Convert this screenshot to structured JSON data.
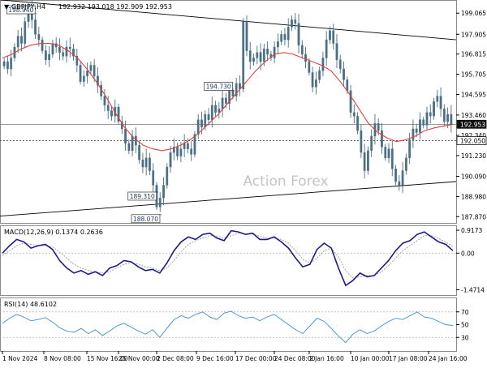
{
  "header": {
    "symbol": "GBPJPY,H4",
    "ohlc": "192.932 193.018 192.909 192.953"
  },
  "watermark": "Action Forex",
  "chart_data": [
    {
      "type": "candlestick",
      "panel": "price",
      "symbol": "GBPJPY",
      "timeframe": "H4",
      "ylim": [
        187.57,
        199.7
      ],
      "y_ticks": [
        199.065,
        197.905,
        196.815,
        195.705,
        194.595,
        193.46,
        192.34,
        191.23,
        190.09,
        188.98,
        187.87
      ],
      "x_ticks": [
        "1 Nov 2024",
        "8 Nov 08:00",
        "15 Nov 16:00",
        "25 Nov 00:00",
        "2 Dec 08:00",
        "9 Dec 16:00",
        "17 Dec 00:00",
        "24 Dec 08:00",
        "2 Jan 16:00",
        "10 Jan 00:00",
        "17 Jan 08:00",
        "24 Jan 16:00"
      ],
      "series": [
        {
          "style": "candles",
          "values": [
            196.4,
            196.0,
            196.6,
            197.2,
            197.8,
            197.4,
            198.6,
            199.3,
            198.7,
            197.9,
            197.6,
            197.0,
            196.5,
            196.8,
            197.4,
            197.2,
            196.9,
            196.7,
            197.2,
            197.1,
            196.7,
            196.2,
            195.3,
            195.6,
            195.9,
            196.2,
            195.6,
            195.1,
            194.5,
            194.0,
            193.7,
            193.4,
            193.9,
            193.1,
            192.7,
            191.9,
            191.5,
            192.3,
            191.8,
            191.0,
            190.6,
            191.1,
            190.4,
            189.6,
            188.4,
            188.9,
            189.6,
            190.6,
            191.4,
            191.7,
            191.2,
            191.6,
            191.9,
            191.6,
            191.3,
            192.4,
            193.2,
            192.8,
            193.5,
            193.2,
            194.0,
            193.6,
            193.8,
            194.4,
            194.1,
            194.8,
            194.5,
            195.2,
            194.9,
            198.6,
            197.0,
            196.4,
            196.6,
            196.9,
            196.4,
            197.1,
            196.8,
            196.6,
            197.2,
            197.5,
            197.9,
            197.6,
            198.3,
            198.7,
            198.5,
            197.3,
            196.8,
            196.4,
            195.8,
            195.0,
            195.4,
            195.9,
            196.6,
            197.6,
            198.1,
            197.4,
            196.5,
            196.0,
            195.4,
            194.8,
            193.6,
            193.4,
            192.6,
            191.4,
            190.4,
            191.5,
            192.3,
            193.0,
            192.6,
            191.7,
            191.1,
            191.6,
            190.5,
            189.8,
            189.6,
            190.4,
            191.1,
            192.1,
            192.7,
            192.5,
            193.2,
            192.9,
            193.6,
            193.4,
            194.2,
            194.5,
            193.8,
            193.1,
            193.5,
            192.953
          ]
        },
        {
          "name": "",
          "style": "moving-average",
          "values": [
            196.6,
            196.8,
            197.1,
            197.3,
            197.4,
            197.4,
            197.3,
            197.0,
            196.6,
            196.0,
            195.3,
            194.5,
            193.6,
            192.8,
            192.2,
            191.8,
            191.6,
            191.5,
            191.6,
            191.8,
            192.1,
            192.5,
            193.0,
            193.5,
            194.1,
            194.7,
            195.3,
            195.9,
            196.4,
            196.8,
            196.9,
            196.8,
            196.6,
            196.4,
            196.2,
            195.9,
            195.3,
            194.6,
            193.8,
            193.0,
            192.5,
            192.2,
            192.0,
            192.1,
            192.3,
            192.6,
            192.75,
            192.85,
            192.95
          ]
        },
        {
          "name": "",
          "style": "trendline",
          "values": [
            199.8,
            197.6
          ]
        },
        {
          "name": "",
          "style": "trendline",
          "values": [
            187.9,
            189.8
          ]
        },
        {
          "name": "",
          "style": "horizontal-level",
          "values": [
            192.95
          ]
        },
        {
          "name": "",
          "style": "horizontal-level",
          "values": [
            192.05
          ]
        }
      ],
      "annotations": [
        {
          "label": "198.940",
          "value": 198.94
        },
        {
          "label": "194.730",
          "value": 194.73
        },
        {
          "label": "189.310",
          "value": 189.31
        },
        {
          "label": "188.070",
          "value": 188.07
        }
      ],
      "price_badges": [
        {
          "label": "192.953",
          "value": 192.953,
          "style": "dark"
        },
        {
          "label": "192.050",
          "value": 192.05,
          "style": "outline"
        }
      ],
      "line_colors": {
        "candles": "#4a6f85",
        "moving-average": "#e0413a",
        "trendline": "#000000"
      }
    },
    {
      "type": "line",
      "panel": "macd",
      "title": "MACD(12,26,9) 0.1374 0.2636",
      "ylim": [
        -1.65,
        1.05
      ],
      "y_ticks": [
        "0.9173",
        "0.00",
        "-1.4714"
      ],
      "y_tick_values": [
        0.9173,
        0.0,
        -1.4714
      ],
      "series": [
        {
          "name": "",
          "values": [
            0.0,
            0.3,
            0.55,
            0.45,
            0.2,
            0.3,
            0.35,
            0.15,
            -0.3,
            -0.6,
            -0.8,
            -0.7,
            -0.85,
            -0.75,
            -0.9,
            -0.6,
            -0.5,
            -0.3,
            -0.35,
            -0.55,
            -0.7,
            -0.65,
            -0.8,
            -0.4,
            0.1,
            0.45,
            0.65,
            0.55,
            0.75,
            0.8,
            0.6,
            0.5,
            0.9,
            0.85,
            0.75,
            0.8,
            0.55,
            0.55,
            0.65,
            0.45,
            0.2,
            -0.2,
            -0.55,
            -0.45,
            0.15,
            0.4,
            0.2,
            -0.6,
            -1.3,
            -1.1,
            -0.8,
            -0.95,
            -0.9,
            -0.6,
            -0.3,
            0.1,
            0.4,
            0.5,
            0.75,
            0.85,
            0.65,
            0.45,
            0.35,
            0.1
          ]
        },
        {
          "name": "",
          "values": [
            -0.1,
            0.1,
            0.3,
            0.4,
            0.35,
            0.3,
            0.3,
            0.25,
            0.05,
            -0.2,
            -0.45,
            -0.6,
            -0.7,
            -0.75,
            -0.8,
            -0.75,
            -0.6,
            -0.45,
            -0.38,
            -0.45,
            -0.55,
            -0.6,
            -0.7,
            -0.6,
            -0.3,
            0.05,
            0.35,
            0.5,
            0.6,
            0.7,
            0.68,
            0.6,
            0.7,
            0.8,
            0.78,
            0.76,
            0.68,
            0.6,
            0.6,
            0.55,
            0.4,
            0.1,
            -0.25,
            -0.4,
            -0.2,
            0.1,
            0.2,
            -0.15,
            -0.7,
            -1.0,
            -0.95,
            -0.9,
            -0.9,
            -0.75,
            -0.5,
            -0.2,
            0.1,
            0.3,
            0.5,
            0.7,
            0.7,
            0.58,
            0.45,
            0.26
          ]
        }
      ]
    },
    {
      "type": "line",
      "panel": "rsi",
      "title": "RSI(14) 48.6102",
      "ylim": [
        10,
        90
      ],
      "y_ticks": [
        "70",
        "50",
        "30"
      ],
      "y_tick_values": [
        70,
        50,
        30
      ],
      "series": [
        {
          "name": "",
          "values": [
            52,
            60,
            66,
            62,
            56,
            58,
            61,
            54,
            45,
            40,
            38,
            44,
            36,
            42,
            33,
            40,
            48,
            52,
            46,
            40,
            35,
            42,
            30,
            44,
            58,
            64,
            60,
            66,
            70,
            62,
            58,
            68,
            71,
            64,
            60,
            62,
            56,
            62,
            66,
            58,
            50,
            42,
            36,
            48,
            60,
            55,
            44,
            32,
            22,
            35,
            42,
            36,
            40,
            48,
            55,
            60,
            58,
            64,
            70,
            62,
            60,
            55,
            50,
            48.6
          ]
        }
      ]
    }
  ]
}
